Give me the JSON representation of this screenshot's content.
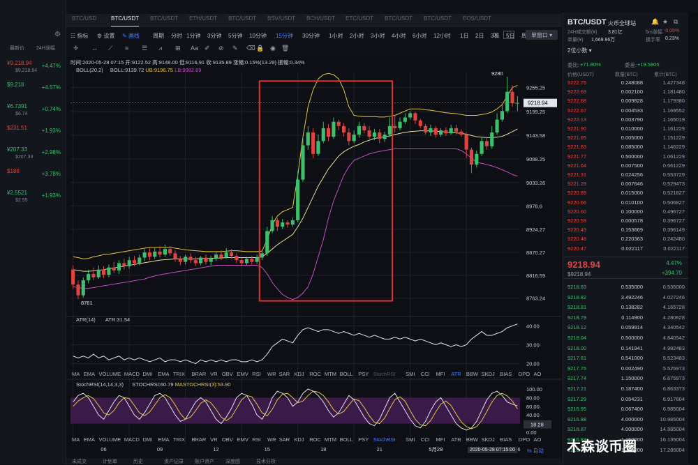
{
  "colors": {
    "up": "#e0443f",
    "down": "#3fbf6d",
    "accent": "#4d7cff",
    "boll_mid": "#e6e0a0",
    "boll_up": "#e5c643",
    "boll_low": "#c050c0",
    "highlight": "#e03030"
  },
  "watchlist": {
    "headers": [
      "最新价",
      "24H涨幅"
    ],
    "items": [
      {
        "price": "¥9,218.94",
        "sub": "$9,218.94",
        "change": "+4.47%",
        "price_color": "#e0443f"
      },
      {
        "price": "$9,218",
        "sub": "",
        "change": "+4.57%",
        "price_color": "#3fbf6d"
      },
      {
        "price": "¥6.7391",
        "sub": "$6.74",
        "change": "+0.74%",
        "price_color": "#3fbf6d"
      },
      {
        "price": "$231.51",
        "sub": "",
        "change": "+1.93%",
        "price_color": "#e0443f"
      },
      {
        "price": "¥207.33",
        "sub": "$207.33",
        "change": "+2.98%",
        "price_color": "#3fbf6d"
      },
      {
        "price": "$188",
        "sub": "",
        "change": "+3.78%",
        "price_color": "#e0443f"
      },
      {
        "price": "¥2.5521",
        "sub": "$2.55",
        "change": "+1.93%",
        "price_color": "#3fbf6d"
      }
    ]
  },
  "tabs": [
    {
      "label": "BTC/USD",
      "active": false
    },
    {
      "label": "BTC/USDT",
      "sub": "火币全球站",
      "active": true
    },
    {
      "label": "BTC/USDT",
      "active": false
    },
    {
      "label": "ETH/USDT",
      "active": false
    },
    {
      "label": "BTC/USDT",
      "active": false
    },
    {
      "label": "BSV/USDT",
      "active": false
    },
    {
      "label": "BCH/USDT",
      "active": false
    },
    {
      "label": "ETC/USDT",
      "active": false
    },
    {
      "label": "BTC/USDT",
      "active": false
    },
    {
      "label": "BTC/USDT",
      "active": false
    },
    {
      "label": "EOS/USDT",
      "active": false
    }
  ],
  "toolbar": {
    "indicator": "指标",
    "settings": "设置",
    "draw": "画线",
    "period": "周期",
    "intervals": [
      "分时",
      "1分钟",
      "3分钟",
      "5分钟",
      "10分钟",
      "15分钟",
      "30分钟",
      "1小时",
      "2小时",
      "3小时",
      "4小时",
      "6小时",
      "12小时",
      "1日",
      "2日",
      "3日",
      "5日",
      "周K"
    ],
    "active_interval": "15分钟",
    "zero_s": "0s",
    "window": "单窗口"
  },
  "chart_info": {
    "ohlc": "时间:2020-05-28 07:15  开:9122.52  高:9148.00  低:9116.91  收:9135.89  涨幅:0.15%(13.29)  振幅:0.34%",
    "boll_label": "BOLL(20,2)",
    "boll_val": "BOLL:9139.72",
    "boll_ub": "UB:9196.75",
    "boll_lb": "LB:9082.69",
    "atr_label": "ATR(14)",
    "atr_val": "ATR:31.54",
    "stoch_label": "StochRSI(14,14,3,3)",
    "stoch_val": "STOCHRSI:60.79",
    "stoch_ma": "MASTOCHRSI(3):53.90",
    "high_mark": "9280",
    "low_mark": "8761",
    "current_price": "9218.94",
    "cursor_time": "2020-05-28 07:15:00"
  },
  "indicators": [
    "MA",
    "EMA",
    "VOLUME",
    "MACD",
    "DMI",
    "EMA",
    "TRIX",
    "BRAR",
    "VR",
    "OBV",
    "EMV",
    "RSI",
    "WR",
    "SAR",
    "KDJ",
    "ROC",
    "MTM",
    "BOLL",
    "PSY",
    "StochRSI",
    "SMI",
    "CCI",
    "MFI",
    "ATR",
    "BBW",
    "SKDJ",
    "BIAS",
    "DPO",
    "AO"
  ],
  "x_labels": [
    "06",
    "09",
    "12",
    "15",
    "18",
    "21",
    "5月28",
    "03",
    "06"
  ],
  "chart_data": {
    "type": "candlestick",
    "y_axis": {
      "ticks": [
        9255.25,
        9199.25,
        9143.58,
        9088.25,
        9033.26,
        8978.6,
        8924.27,
        8870.27,
        8816.59,
        8763.24
      ],
      "min": 8740,
      "max": 9290
    },
    "atr_axis": [
      40.0,
      30.0,
      20.0
    ],
    "stoch_axis": [
      100.0,
      80.0,
      60.0,
      40.0,
      20.0,
      0.0
    ],
    "stoch_marker": "18.28",
    "candles": [
      [
        8830,
        8795,
        8840,
        8785
      ],
      [
        8795,
        8770,
        8805,
        8761
      ],
      [
        8770,
        8805,
        8812,
        8765
      ],
      [
        8805,
        8820,
        8830,
        8798
      ],
      [
        8820,
        8812,
        8835,
        8805
      ],
      [
        8812,
        8830,
        8840,
        8808
      ],
      [
        8830,
        8818,
        8838,
        8810
      ],
      [
        8818,
        8835,
        8842,
        8812
      ],
      [
        8835,
        8828,
        8848,
        8822
      ],
      [
        8828,
        8845,
        8852,
        8820
      ],
      [
        8845,
        8838,
        8855,
        8830
      ],
      [
        8838,
        8852,
        8860,
        8832
      ],
      [
        8852,
        8845,
        8862,
        8838
      ],
      [
        8845,
        8858,
        8865,
        8840
      ],
      [
        8858,
        8870,
        8878,
        8850
      ],
      [
        8870,
        8860,
        8882,
        8852
      ],
      [
        8860,
        8872,
        8880,
        8855
      ],
      [
        8872,
        8865,
        8885,
        8858
      ],
      [
        8865,
        8878,
        8888,
        8860
      ],
      [
        8878,
        8868,
        8885,
        8862
      ],
      [
        8868,
        8855,
        8875,
        8848
      ],
      [
        8855,
        8848,
        8862,
        8840
      ],
      [
        8848,
        8860,
        8865,
        8842
      ],
      [
        8860,
        8852,
        8868,
        8845
      ],
      [
        8852,
        8845,
        8860,
        8838
      ],
      [
        8845,
        8858,
        8862,
        8840
      ],
      [
        8858,
        8848,
        8865,
        8842
      ],
      [
        8848,
        8855,
        8862,
        8840
      ],
      [
        8855,
        8865,
        8872,
        8850
      ],
      [
        8865,
        8858,
        8875,
        8852
      ],
      [
        8858,
        8870,
        8880,
        8855
      ],
      [
        8870,
        8862,
        8878,
        8855
      ],
      [
        8862,
        8852,
        8868,
        8845
      ],
      [
        8852,
        8845,
        8858,
        8838
      ],
      [
        8845,
        8855,
        8860,
        8840
      ],
      [
        8855,
        8848,
        8862,
        8842
      ],
      [
        8848,
        8858,
        8865,
        8843
      ],
      [
        8858,
        8868,
        8875,
        8852
      ],
      [
        8868,
        8920,
        8930,
        8862
      ],
      [
        8920,
        8945,
        8955,
        8915
      ],
      [
        8945,
        8930,
        8950,
        8920
      ],
      [
        8930,
        8940,
        8948,
        8925
      ],
      [
        8940,
        8935,
        8945,
        8928
      ],
      [
        8935,
        8945,
        8952,
        8930
      ],
      [
        8945,
        9040,
        9060,
        8940
      ],
      [
        9040,
        9120,
        9140,
        9035
      ],
      [
        9120,
        9150,
        9165,
        9110
      ],
      [
        9150,
        9100,
        9160,
        9090
      ],
      [
        9100,
        9130,
        9145,
        9095
      ],
      [
        9130,
        9160,
        9175,
        9125
      ],
      [
        9160,
        9140,
        9170,
        9130
      ],
      [
        9140,
        9175,
        9185,
        9135
      ],
      [
        9175,
        9165,
        9180,
        9155
      ],
      [
        9165,
        9150,
        9172,
        9140
      ],
      [
        9150,
        9130,
        9160,
        9120
      ],
      [
        9130,
        9145,
        9155,
        9125
      ],
      [
        9145,
        9165,
        9175,
        9138
      ],
      [
        9165,
        9155,
        9172,
        9148
      ],
      [
        9155,
        9140,
        9165,
        9135
      ],
      [
        9140,
        9150,
        9158,
        9132
      ],
      [
        9150,
        9135,
        9158,
        9125
      ],
      [
        9135,
        9145,
        9152,
        9128
      ],
      [
        9145,
        9165,
        9185,
        9140
      ],
      [
        9165,
        9160,
        9190,
        9150
      ],
      [
        9160,
        9175,
        9185,
        9155
      ],
      [
        9175,
        9185,
        9195,
        9170
      ],
      [
        9185,
        9195,
        9200,
        9180
      ],
      [
        9195,
        9178,
        9198,
        9170
      ],
      [
        9178,
        9165,
        9182,
        9160
      ],
      [
        9165,
        9150,
        9170,
        9145
      ],
      [
        9150,
        9160,
        9168,
        9142
      ],
      [
        9160,
        9145,
        9165,
        9138
      ],
      [
        9145,
        9155,
        9160,
        9140
      ],
      [
        9155,
        9148,
        9162,
        9142
      ],
      [
        9148,
        9160,
        9168,
        9145
      ],
      [
        9160,
        9152,
        9168,
        9146
      ],
      [
        9152,
        9145,
        9158,
        9140
      ],
      [
        9145,
        9110,
        9150,
        9090
      ],
      [
        9110,
        9075,
        9115,
        9055
      ],
      [
        9075,
        9100,
        9108,
        9068
      ],
      [
        9100,
        9130,
        9140,
        9095
      ],
      [
        9130,
        9118,
        9140,
        9110
      ],
      [
        9118,
        9150,
        9165,
        9112
      ],
      [
        9150,
        9180,
        9195,
        9145
      ],
      [
        9180,
        9200,
        9215,
        9175
      ],
      [
        9200,
        9245,
        9280,
        9195
      ],
      [
        9245,
        9218,
        9260,
        9210
      ],
      [
        9218,
        9219,
        9235,
        9200
      ]
    ],
    "boll_up": [
      8860,
      8858,
      8855,
      8856,
      8860,
      8862,
      8865,
      8866,
      8868,
      8870,
      8872,
      8874,
      8876,
      8878,
      8880,
      8882,
      8882,
      8882,
      8882,
      8882,
      8880,
      8878,
      8876,
      8875,
      8874,
      8873,
      8872,
      8872,
      8872,
      8872,
      8873,
      8874,
      8874,
      8873,
      8872,
      8872,
      8872,
      8873,
      8900,
      8935,
      8955,
      8965,
      8970,
      8975,
      9050,
      9140,
      9210,
      9250,
      9275,
      9285,
      9288,
      9285,
      9275,
      9250,
      9210,
      9190,
      9188,
      9187,
      9187,
      9187,
      9186,
      9186,
      9188,
      9190,
      9195,
      9200,
      9205,
      9205,
      9205,
      9203,
      9202,
      9200,
      9198,
      9196,
      9195,
      9194,
      9192,
      9190,
      9190,
      9190,
      9192,
      9194,
      9198,
      9205,
      9215,
      9235,
      9255,
      9260
    ],
    "boll_mid": [
      8830,
      8828,
      8826,
      8826,
      8827,
      8828,
      8830,
      8832,
      8834,
      8836,
      8838,
      8840,
      8842,
      8844,
      8846,
      8848,
      8850,
      8852,
      8853,
      8854,
      8855,
      8855,
      8855,
      8855,
      8855,
      8856,
      8856,
      8856,
      8857,
      8857,
      8858,
      8858,
      8858,
      8858,
      8858,
      8858,
      8858,
      8860,
      8868,
      8878,
      8888,
      8896,
      8904,
      8912,
      8930,
      8950,
      8975,
      9000,
      9025,
      9045,
      9065,
      9080,
      9095,
      9105,
      9112,
      9118,
      9122,
      9128,
      9132,
      9136,
      9138,
      9140,
      9142,
      9145,
      9148,
      9150,
      9152,
      9153,
      9154,
      9154,
      9154,
      9153,
      9152,
      9151,
      9150,
      9149,
      9148,
      9146,
      9143,
      9140,
      9139,
      9138,
      9138,
      9139,
      9141,
      9146,
      9152,
      9158
    ],
    "boll_low": [
      8790,
      8788,
      8786,
      8786,
      8788,
      8790,
      8792,
      8794,
      8796,
      8798,
      8800,
      8802,
      8804,
      8806,
      8808,
      8812,
      8815,
      8818,
      8820,
      8822,
      8824,
      8826,
      8828,
      8830,
      8832,
      8834,
      8836,
      8838,
      8840,
      8840,
      8840,
      8840,
      8840,
      8840,
      8840,
      8840,
      8840,
      8835,
      8820,
      8800,
      8785,
      8772,
      8765,
      8760,
      8765,
      8775,
      8790,
      8820,
      8860,
      8900,
      8950,
      8990,
      9020,
      9050,
      9070,
      9085,
      9090,
      9095,
      9100,
      9103,
      9106,
      9108,
      9110,
      9112,
      9112,
      9112,
      9112,
      9112,
      9112,
      9112,
      9112,
      9112,
      9112,
      9112,
      9112,
      9112,
      9108,
      9100,
      9090,
      9080,
      9078,
      9075,
      9072,
      9068,
      9063,
      9058,
      9052,
      9048
    ],
    "atr": [
      24,
      23,
      24,
      23,
      25,
      23,
      24,
      22,
      23,
      24,
      22,
      23,
      22,
      23,
      22,
      21,
      22,
      23,
      21,
      22,
      22,
      21,
      22,
      21,
      20,
      22,
      21,
      22,
      21,
      22,
      21,
      22,
      22,
      21,
      21,
      22,
      21,
      22,
      25,
      29,
      31,
      33,
      32,
      31,
      35,
      38,
      39,
      38,
      37,
      38,
      38,
      37,
      36,
      37,
      36,
      35,
      36,
      35,
      34,
      35,
      34,
      33,
      33,
      34,
      33,
      34,
      33,
      32,
      33,
      32,
      31,
      30,
      31,
      30,
      29,
      30,
      29,
      30,
      33,
      35,
      37,
      35,
      35,
      36,
      37,
      39,
      40,
      41
    ],
    "stoch_k": [
      70,
      85,
      90,
      80,
      60,
      40,
      30,
      50,
      70,
      85,
      80,
      60,
      40,
      30,
      45,
      65,
      85,
      90,
      80,
      60,
      40,
      25,
      30,
      50,
      70,
      80,
      70,
      50,
      30,
      20,
      35,
      55,
      80,
      90,
      85,
      65,
      40,
      30,
      50,
      80,
      95,
      90,
      80,
      60,
      70,
      90,
      100,
      95,
      85,
      70,
      50,
      35,
      45,
      65,
      85,
      75,
      55,
      35,
      20,
      15,
      30,
      55,
      80,
      90,
      70,
      50,
      30,
      15,
      10,
      25,
      50,
      70,
      80,
      60,
      40,
      20,
      10,
      5,
      10,
      25,
      50,
      75,
      90,
      95,
      85,
      70,
      65,
      61
    ],
    "stoch_d": [
      60,
      72,
      80,
      85,
      78,
      62,
      45,
      40,
      50,
      68,
      80,
      78,
      62,
      45,
      38,
      47,
      63,
      80,
      87,
      80,
      63,
      43,
      30,
      35,
      50,
      67,
      75,
      68,
      53,
      35,
      27,
      35,
      55,
      75,
      85,
      82,
      65,
      45,
      38,
      53,
      75,
      88,
      90,
      80,
      68,
      72,
      85,
      95,
      93,
      85,
      70,
      52,
      42,
      48,
      63,
      77,
      73,
      57,
      38,
      23,
      20,
      33,
      55,
      75,
      82,
      72,
      50,
      30,
      17,
      15,
      27,
      47,
      65,
      72,
      62,
      42,
      24,
      13,
      8,
      13,
      27,
      48,
      70,
      85,
      90,
      84,
      72,
      54
    ],
    "highlight_box": {
      "from_index": 37,
      "to_index": 63
    }
  },
  "right": {
    "pair": "BTC/USDT",
    "exchange": "火币全球站",
    "vol_label": "24H成交额(¥)",
    "vol_val": "3.81亿",
    "m5_label": "5m涨幅",
    "m5_val": "-0.05%",
    "usd_label": "单量(¥)",
    "usd_val": "1,669.96万",
    "turn_label": "换手率",
    "turn_val": "0.23%",
    "precision": "2位小数",
    "buy_ratio_label": "委比:",
    "buy_ratio": "+71.80%",
    "diff_label": "委差:",
    "diff": "+19.5805",
    "cols": [
      "价格(USDT)",
      "数量(BTC)",
      "累计(BTC)"
    ],
    "asks": [
      [
        "9222.75",
        "0.248088",
        "1.427348"
      ],
      [
        "9222.69",
        "0.002100",
        "1.181480"
      ],
      [
        "9222.68",
        "0.009828",
        "1.179380"
      ],
      [
        "9222.67",
        "0.004533",
        "1.169552"
      ],
      [
        "9222.13",
        "0.003790",
        "1.165019"
      ],
      [
        "9221.90",
        "0.010000",
        "1.161229"
      ],
      [
        "9221.85",
        "0.005000",
        "1.151229"
      ],
      [
        "9221.83",
        "0.085000",
        "1.146229"
      ],
      [
        "9221.77",
        "0.500000",
        "1.061229"
      ],
      [
        "9221.64",
        "0.007500",
        "0.561229"
      ],
      [
        "9221.31",
        "0.024256",
        "0.553729"
      ],
      [
        "9221.29",
        "0.007646",
        "0.529473"
      ],
      [
        "9220.89",
        "0.015000",
        "0.521827"
      ],
      [
        "9220.66",
        "0.010100",
        "0.506827"
      ],
      [
        "9220.60",
        "0.100000",
        "0.496727"
      ],
      [
        "9220.59",
        "0.000578",
        "0.396727"
      ],
      [
        "9220.49",
        "0.153669",
        "0.396149"
      ],
      [
        "9220.48",
        "0.220363",
        "0.242480"
      ],
      [
        "9220.47",
        "0.022117",
        "0.022117"
      ]
    ],
    "last": "9218.94",
    "last_usd": "$9218.94",
    "last_pct": "4.47%",
    "last_abs": "+394.70",
    "bids": [
      [
        "9218.83",
        "0.535000",
        "0.535000"
      ],
      [
        "9218.82",
        "3.492246",
        "4.027246"
      ],
      [
        "9218.81",
        "0.138282",
        "4.165728"
      ],
      [
        "9218.79",
        "0.114900",
        "4.280628"
      ],
      [
        "9218.12",
        "0.059914",
        "4.340542"
      ],
      [
        "9218.04",
        "0.500000",
        "4.840542"
      ],
      [
        "9218.00",
        "0.141941",
        "4.982483"
      ],
      [
        "9217.81",
        "0.541000",
        "5.523483"
      ],
      [
        "9217.75",
        "0.002490",
        "5.525973"
      ],
      [
        "9217.74",
        "1.150000",
        "6.675973"
      ],
      [
        "9217.21",
        "0.187400",
        "6.863373"
      ],
      [
        "9217.29",
        "0.054231",
        "6.917604"
      ],
      [
        "9216.95",
        "0.067400",
        "6.985004"
      ],
      [
        "9216.88",
        "4.000000",
        "10.985004"
      ],
      [
        "9216.87",
        "4.000000",
        "14.985004"
      ],
      [
        "9216.83",
        "1.150000",
        "16.135004"
      ],
      [
        "9216.74",
        "1.150000",
        "17.285004"
      ]
    ]
  },
  "bottom": {
    "tabs": [
      "未成交",
      "计划单",
      "历史",
      "资产记录",
      "账户资产",
      "深度图",
      "技术分析"
    ]
  },
  "watermark": "木森谈币圈"
}
